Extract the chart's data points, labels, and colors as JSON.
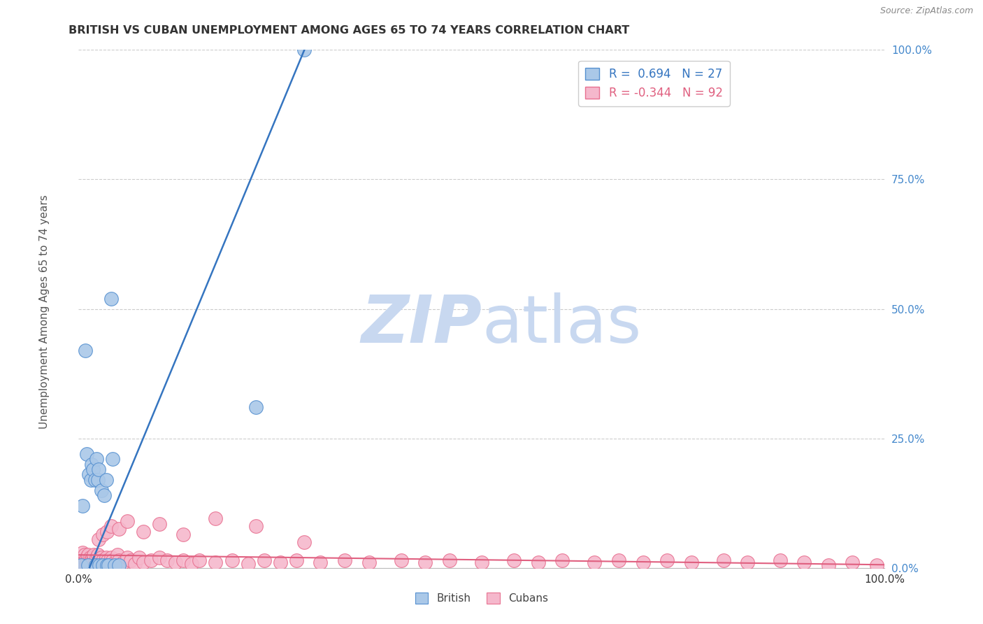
{
  "title": "BRITISH VS CUBAN UNEMPLOYMENT AMONG AGES 65 TO 74 YEARS CORRELATION CHART",
  "source": "Source: ZipAtlas.com",
  "ylabel": "Unemployment Among Ages 65 to 74 years",
  "xlim": [
    0,
    1
  ],
  "ylim": [
    0,
    1
  ],
  "ytick_labels": [
    "100.0%",
    "75.0%",
    "50.0%",
    "25.0%",
    "0.0%"
  ],
  "ytick_values": [
    1.0,
    0.75,
    0.5,
    0.25,
    0.0
  ],
  "legend_british_r": "0.694",
  "legend_british_n": "27",
  "legend_cuban_r": "-0.344",
  "legend_cuban_n": "92",
  "british_fill_color": "#aac8e8",
  "cuban_fill_color": "#f5b8cc",
  "british_edge_color": "#5590d0",
  "cuban_edge_color": "#e87090",
  "british_line_color": "#3575c0",
  "cuban_line_color": "#e06080",
  "watermark_zip_color": "#c8d8f0",
  "watermark_atlas_color": "#c8d8f0",
  "background_color": "#ffffff",
  "grid_color": "#cccccc",
  "ytick_color": "#4488cc",
  "xtick_color": "#333333",
  "title_color": "#333333",
  "ylabel_color": "#555555",
  "british_scatter_x": [
    0.003,
    0.005,
    0.008,
    0.01,
    0.012,
    0.013,
    0.015,
    0.016,
    0.018,
    0.02,
    0.021,
    0.022,
    0.024,
    0.025,
    0.026,
    0.028,
    0.03,
    0.032,
    0.034,
    0.035,
    0.037,
    0.04,
    0.042,
    0.045,
    0.05,
    0.22,
    0.28
  ],
  "british_scatter_y": [
    0.005,
    0.12,
    0.42,
    0.22,
    0.005,
    0.18,
    0.17,
    0.2,
    0.19,
    0.17,
    0.005,
    0.21,
    0.17,
    0.19,
    0.005,
    0.15,
    0.005,
    0.14,
    0.17,
    0.005,
    0.005,
    0.52,
    0.21,
    0.005,
    0.005,
    0.31,
    1.0
  ],
  "cuban_scatter_x": [
    0.003,
    0.004,
    0.005,
    0.005,
    0.006,
    0.007,
    0.008,
    0.009,
    0.01,
    0.01,
    0.011,
    0.012,
    0.013,
    0.014,
    0.015,
    0.015,
    0.016,
    0.017,
    0.018,
    0.019,
    0.02,
    0.021,
    0.022,
    0.023,
    0.024,
    0.025,
    0.026,
    0.027,
    0.028,
    0.03,
    0.032,
    0.034,
    0.036,
    0.038,
    0.04,
    0.042,
    0.045,
    0.048,
    0.05,
    0.055,
    0.06,
    0.065,
    0.07,
    0.075,
    0.08,
    0.09,
    0.1,
    0.11,
    0.12,
    0.13,
    0.14,
    0.15,
    0.17,
    0.19,
    0.21,
    0.23,
    0.25,
    0.27,
    0.3,
    0.33,
    0.36,
    0.4,
    0.43,
    0.46,
    0.5,
    0.54,
    0.57,
    0.6,
    0.64,
    0.67,
    0.7,
    0.73,
    0.76,
    0.8,
    0.83,
    0.87,
    0.9,
    0.93,
    0.96,
    0.99,
    0.025,
    0.03,
    0.035,
    0.04,
    0.05,
    0.06,
    0.08,
    0.1,
    0.13,
    0.17,
    0.22,
    0.28
  ],
  "cuban_scatter_y": [
    0.02,
    0.005,
    0.015,
    0.03,
    0.01,
    0.025,
    0.015,
    0.005,
    0.02,
    0.01,
    0.015,
    0.025,
    0.008,
    0.02,
    0.015,
    0.005,
    0.01,
    0.02,
    0.015,
    0.025,
    0.01,
    0.015,
    0.02,
    0.008,
    0.025,
    0.01,
    0.015,
    0.005,
    0.02,
    0.015,
    0.01,
    0.02,
    0.015,
    0.008,
    0.02,
    0.015,
    0.01,
    0.025,
    0.015,
    0.01,
    0.02,
    0.015,
    0.008,
    0.02,
    0.01,
    0.015,
    0.02,
    0.015,
    0.01,
    0.015,
    0.008,
    0.015,
    0.01,
    0.015,
    0.008,
    0.015,
    0.01,
    0.015,
    0.01,
    0.015,
    0.01,
    0.015,
    0.01,
    0.015,
    0.01,
    0.015,
    0.01,
    0.015,
    0.01,
    0.015,
    0.01,
    0.015,
    0.01,
    0.015,
    0.01,
    0.015,
    0.01,
    0.005,
    0.01,
    0.005,
    0.055,
    0.065,
    0.07,
    0.08,
    0.075,
    0.09,
    0.07,
    0.085,
    0.065,
    0.095,
    0.08,
    0.05
  ]
}
